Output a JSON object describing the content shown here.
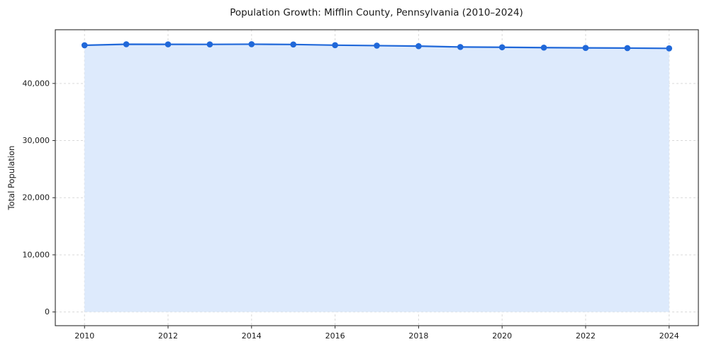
{
  "chart_data": {
    "type": "line",
    "title": "Population Growth: Mifflin County, Pennsylvania (2010–2024)",
    "xlabel": "",
    "ylabel": "Total Population",
    "x": [
      2010,
      2011,
      2012,
      2013,
      2014,
      2015,
      2016,
      2017,
      2018,
      2019,
      2020,
      2021,
      2022,
      2023,
      2024
    ],
    "series": [
      {
        "name": "Total Population",
        "values": [
          46682,
          46860,
          46845,
          46835,
          46870,
          46820,
          46700,
          46620,
          46530,
          46380,
          46330,
          46270,
          46220,
          46190,
          46140
        ]
      }
    ],
    "xlim": [
      2009.3,
      2024.7
    ],
    "ylim": [
      -2400,
      49400
    ],
    "xticks": [
      {
        "value": 2010,
        "label": "2010"
      },
      {
        "value": 2012,
        "label": "2012"
      },
      {
        "value": 2014,
        "label": "2014"
      },
      {
        "value": 2016,
        "label": "2016"
      },
      {
        "value": 2018,
        "label": "2018"
      },
      {
        "value": 2020,
        "label": "2020"
      },
      {
        "value": 2022,
        "label": "2022"
      },
      {
        "value": 2024,
        "label": "2024"
      }
    ],
    "yticks": [
      {
        "value": 0,
        "label": "0"
      },
      {
        "value": 10000,
        "label": "10,000"
      },
      {
        "value": 20000,
        "label": "20,000"
      },
      {
        "value": 30000,
        "label": "30,000"
      },
      {
        "value": 40000,
        "label": "40,000"
      }
    ],
    "grid": true,
    "legend": "none",
    "colors": {
      "line": "#2068d9",
      "marker": "#2068d9",
      "area_fill": "#ddeafc",
      "grid": "#d9d9d9",
      "spine": "#2b2b2b",
      "background": "#ffffff"
    },
    "area_baseline": 0
  }
}
